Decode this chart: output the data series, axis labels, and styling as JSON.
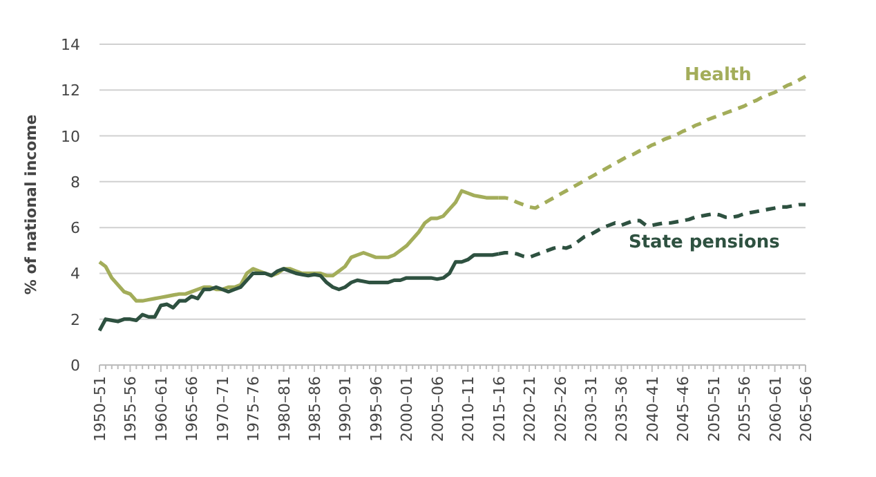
{
  "chart_data": {
    "type": "line",
    "ylabel": "% of national income",
    "categories": [
      "1950–51",
      null,
      null,
      null,
      null,
      "1955–56",
      null,
      null,
      null,
      null,
      "1960–61",
      null,
      null,
      null,
      null,
      "1965–66",
      null,
      null,
      null,
      null,
      "1970–71",
      null,
      null,
      null,
      null,
      "1975–76",
      null,
      null,
      null,
      null,
      "1980–81",
      null,
      null,
      null,
      null,
      "1985–86",
      null,
      null,
      null,
      null,
      "1990–91",
      null,
      null,
      null,
      null,
      "1995–96",
      null,
      null,
      null,
      null,
      "2000–01",
      null,
      null,
      null,
      null,
      "2005–06",
      null,
      null,
      null,
      null,
      "2010–11",
      null,
      null,
      null,
      null,
      "2015–16",
      null,
      null,
      null,
      null,
      "2020–21",
      null,
      null,
      null,
      null,
      "2025–26",
      null,
      null,
      null,
      null,
      "2030–31",
      null,
      null,
      null,
      null,
      "2035–36",
      null,
      null,
      null,
      null,
      "2040–41",
      null,
      null,
      null,
      null,
      "2045–46",
      null,
      null,
      null,
      null,
      "2050–51",
      null,
      null,
      null,
      null,
      "2055–56",
      null,
      null,
      null,
      null,
      "2060–61",
      null,
      null,
      null,
      null,
      "2065–66"
    ],
    "ylim": [
      0,
      14
    ],
    "yticks": [
      0,
      2,
      4,
      6,
      8,
      10,
      12,
      14
    ],
    "grid": "y",
    "series": [
      {
        "color": "#a3ad5a",
        "line_style": "solid",
        "values": [
          4.5,
          4.3,
          3.8,
          3.5,
          3.2,
          3.1,
          2.8,
          2.8,
          2.85,
          2.9,
          2.95,
          3.0,
          3.05,
          3.1,
          3.1,
          3.2,
          3.3,
          3.4,
          3.4,
          3.3,
          3.3,
          3.4,
          3.4,
          3.5,
          4.0,
          4.2,
          4.1,
          4.0,
          3.9,
          4.0,
          4.2,
          4.2,
          4.1,
          4.0,
          4.0,
          4.0,
          4.0,
          3.9,
          3.9,
          4.1,
          4.3,
          4.7,
          4.8,
          4.9,
          4.8,
          4.7,
          4.7,
          4.7,
          4.8,
          5.0,
          5.2,
          5.5,
          5.8,
          6.2,
          6.4,
          6.4,
          6.5,
          6.8,
          7.1,
          7.6,
          7.5,
          7.4,
          7.35,
          7.3,
          7.3,
          7.3,
          null,
          null,
          null,
          null,
          null,
          null,
          null,
          null,
          null,
          null,
          null,
          null,
          null,
          null,
          null,
          null,
          null,
          null,
          null,
          null,
          null,
          null,
          null,
          null,
          null,
          null,
          null,
          null,
          null,
          null,
          null,
          null,
          null,
          null,
          null,
          null,
          null,
          null,
          null,
          null,
          null,
          null,
          null,
          null,
          null,
          null,
          null,
          null,
          null,
          null
        ]
      },
      {
        "name": "Health",
        "color": "#a3ad5a",
        "line_style": "dashed",
        "values": [
          null,
          null,
          null,
          null,
          null,
          null,
          null,
          null,
          null,
          null,
          null,
          null,
          null,
          null,
          null,
          null,
          null,
          null,
          null,
          null,
          null,
          null,
          null,
          null,
          null,
          null,
          null,
          null,
          null,
          null,
          null,
          null,
          null,
          null,
          null,
          null,
          null,
          null,
          null,
          null,
          null,
          null,
          null,
          null,
          null,
          null,
          null,
          null,
          null,
          null,
          null,
          null,
          null,
          null,
          null,
          null,
          null,
          null,
          null,
          null,
          null,
          null,
          null,
          null,
          null,
          7.3,
          7.3,
          7.25,
          7.1,
          7.0,
          6.9,
          6.85,
          7.0,
          7.15,
          7.3,
          7.45,
          7.6,
          7.75,
          7.9,
          8.05,
          8.2,
          8.35,
          8.5,
          8.65,
          8.8,
          8.95,
          9.1,
          9.2,
          9.35,
          9.45,
          9.6,
          9.7,
          9.85,
          9.95,
          10.05,
          10.2,
          10.3,
          10.45,
          10.55,
          10.7,
          10.8,
          10.9,
          11.0,
          11.1,
          11.2,
          11.3,
          11.45,
          11.55,
          11.7,
          11.8,
          11.9,
          12.05,
          12.2,
          12.3,
          12.45,
          12.6
        ]
      },
      {
        "color": "#2e5140",
        "line_style": "solid",
        "values": [
          1.5,
          2.0,
          1.95,
          1.9,
          2.0,
          2.0,
          1.95,
          2.2,
          2.1,
          2.1,
          2.6,
          2.65,
          2.5,
          2.8,
          2.8,
          3.0,
          2.9,
          3.3,
          3.3,
          3.4,
          3.3,
          3.2,
          3.3,
          3.4,
          3.7,
          4.0,
          4.0,
          4.0,
          3.9,
          4.1,
          4.2,
          4.1,
          4.0,
          3.95,
          3.9,
          3.95,
          3.9,
          3.6,
          3.4,
          3.3,
          3.4,
          3.6,
          3.7,
          3.65,
          3.6,
          3.6,
          3.6,
          3.6,
          3.7,
          3.7,
          3.8,
          3.8,
          3.8,
          3.8,
          3.8,
          3.75,
          3.8,
          4.0,
          4.5,
          4.5,
          4.6,
          4.8,
          4.8,
          4.8,
          4.8,
          4.85,
          null,
          null,
          null,
          null,
          null,
          null,
          null,
          null,
          null,
          null,
          null,
          null,
          null,
          null,
          null,
          null,
          null,
          null,
          null,
          null,
          null,
          null,
          null,
          null,
          null,
          null,
          null,
          null,
          null,
          null,
          null,
          null,
          null,
          null,
          null,
          null,
          null,
          null,
          null,
          null,
          null,
          null,
          null,
          null,
          null,
          null,
          null,
          null,
          null,
          null
        ]
      },
      {
        "name": "State pensions",
        "color": "#2e5140",
        "line_style": "dashed",
        "values": [
          null,
          null,
          null,
          null,
          null,
          null,
          null,
          null,
          null,
          null,
          null,
          null,
          null,
          null,
          null,
          null,
          null,
          null,
          null,
          null,
          null,
          null,
          null,
          null,
          null,
          null,
          null,
          null,
          null,
          null,
          null,
          null,
          null,
          null,
          null,
          null,
          null,
          null,
          null,
          null,
          null,
          null,
          null,
          null,
          null,
          null,
          null,
          null,
          null,
          null,
          null,
          null,
          null,
          null,
          null,
          null,
          null,
          null,
          null,
          null,
          null,
          null,
          null,
          null,
          null,
          4.85,
          4.9,
          4.9,
          4.85,
          4.75,
          4.7,
          4.8,
          4.9,
          5.0,
          5.1,
          5.15,
          5.1,
          5.2,
          5.4,
          5.6,
          5.7,
          5.85,
          6.0,
          6.1,
          6.2,
          6.1,
          6.2,
          6.3,
          6.3,
          6.1,
          6.1,
          6.15,
          6.2,
          6.2,
          6.25,
          6.3,
          6.35,
          6.45,
          6.5,
          6.55,
          6.6,
          6.55,
          6.45,
          6.45,
          6.5,
          6.6,
          6.65,
          6.7,
          6.75,
          6.8,
          6.85,
          6.9,
          6.9,
          6.95,
          7.0,
          7.0
        ]
      }
    ]
  }
}
